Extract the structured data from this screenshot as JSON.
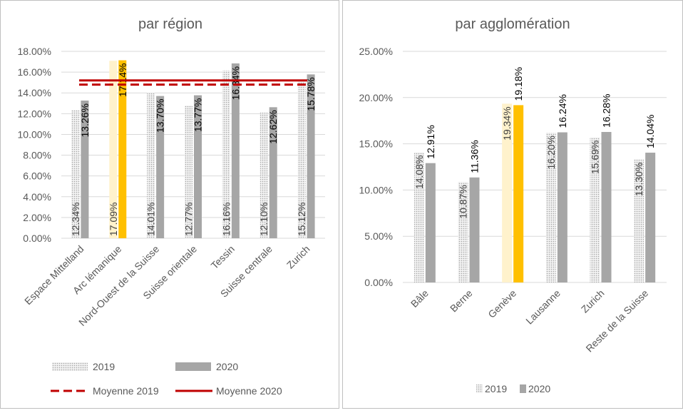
{
  "colors": {
    "bar_2019": "#d9d9d9",
    "bar_2020": "#a6a6a6",
    "highlight_2019": "#fff2cc",
    "highlight_2020": "#ffc000",
    "mean_line": "#c00000",
    "grid": "#d9d9d9",
    "text": "#595959"
  },
  "chart_data": [
    {
      "type": "bar",
      "title": "par région",
      "categories": [
        "Espace Mittelland",
        "Arc lémanique",
        "Nord-Ouest de la Suisse",
        "Suisse orientale",
        "Tessin",
        "Suisse centrale",
        "Zurich"
      ],
      "series": [
        {
          "name": "2019",
          "values": [
            12.34,
            17.09,
            14.01,
            12.77,
            16.16,
            12.1,
            15.12
          ],
          "labels": [
            "12.34%",
            "17.09%",
            "14.01%",
            "12.77%",
            "16.16%",
            "12.10%",
            "15.12%"
          ]
        },
        {
          "name": "2020",
          "values": [
            13.26,
            17.14,
            13.7,
            13.77,
            16.84,
            12.62,
            15.78
          ],
          "labels": [
            "13.26%",
            "17.14%",
            "13.70%",
            "13.77%",
            "16.84%",
            "12.62%",
            "15.78%"
          ]
        }
      ],
      "highlight_category": "Arc lémanique",
      "reference_lines": [
        {
          "name": "Moyenne 2019",
          "value": 14.8,
          "style": "dashed"
        },
        {
          "name": "Moyenne 2020",
          "value": 15.2,
          "style": "solid"
        }
      ],
      "ylim": [
        0,
        18
      ],
      "yticks": [
        "0.00%",
        "2.00%",
        "4.00%",
        "6.00%",
        "8.00%",
        "10.00%",
        "12.00%",
        "14.00%",
        "16.00%",
        "18.00%"
      ],
      "ytick_values": [
        0,
        2,
        4,
        6,
        8,
        10,
        12,
        14,
        16,
        18
      ],
      "grid": true,
      "legend_position": "bottom"
    },
    {
      "type": "bar",
      "title": "par agglomération",
      "categories": [
        "Bâle",
        "Berne",
        "Genève",
        "Lausanne",
        "Zurich",
        "Reste de la Suisse"
      ],
      "series": [
        {
          "name": "2019",
          "values": [
            14.08,
            10.87,
            19.34,
            16.2,
            15.69,
            13.3
          ],
          "labels": [
            "14.08%",
            "10.87%",
            "19.34%",
            "16.20%",
            "15.69%",
            "13.30%"
          ]
        },
        {
          "name": "2020",
          "values": [
            12.91,
            11.36,
            19.18,
            16.24,
            16.28,
            14.04
          ],
          "labels": [
            "12.91%",
            "11.36%",
            "19.18%",
            "16.24%",
            "16.28%",
            "14.04%"
          ]
        }
      ],
      "highlight_category": "Genève",
      "ylim": [
        0,
        25
      ],
      "yticks": [
        "0.00%",
        "5.00%",
        "10.00%",
        "15.00%",
        "20.00%",
        "25.00%"
      ],
      "ytick_values": [
        0,
        5,
        10,
        15,
        20,
        25
      ],
      "grid": true,
      "legend_position": "bottom"
    }
  ]
}
